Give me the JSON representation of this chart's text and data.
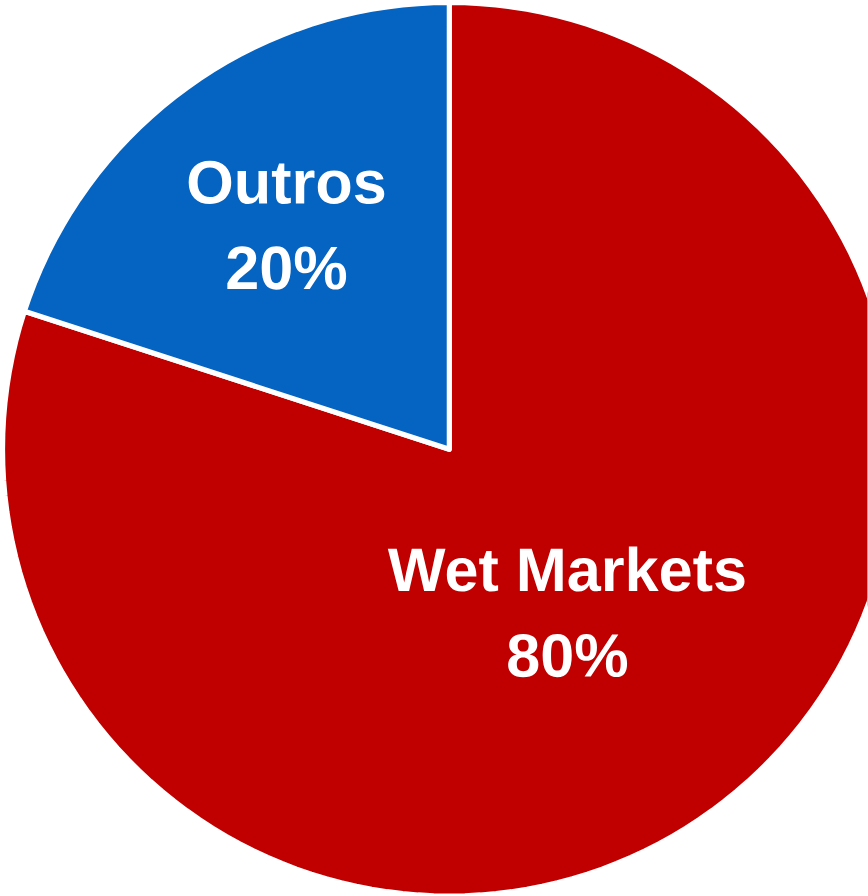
{
  "chart_data": {
    "type": "pie",
    "categories": [
      "Wet Markets",
      "Outros"
    ],
    "values": [
      80,
      20
    ],
    "colors": [
      "#c00000",
      "#0563c1"
    ],
    "value_labels": [
      "80%",
      "20%"
    ]
  }
}
